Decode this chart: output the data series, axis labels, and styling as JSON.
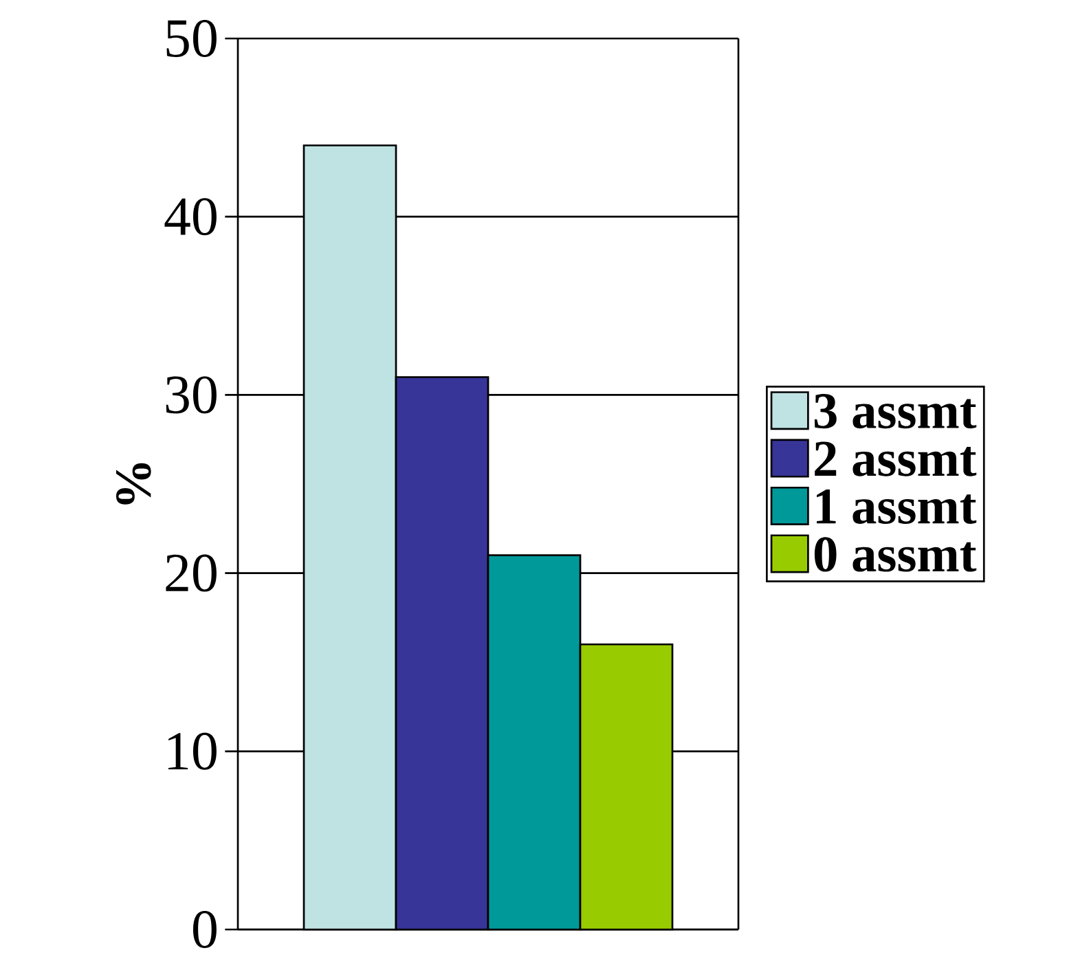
{
  "chart_data": {
    "type": "bar",
    "ylabel": "%",
    "categories": [
      null
    ],
    "series": [
      {
        "name": "3 assmt",
        "color": "#bfe3e3",
        "values": [
          44
        ]
      },
      {
        "name": "2 assmt",
        "color": "#373598",
        "values": [
          31
        ]
      },
      {
        "name": "1 assmt",
        "color": "#00999a",
        "values": [
          21
        ]
      },
      {
        "name": "0 assmt",
        "color": "#99cc00",
        "values": [
          16
        ]
      }
    ],
    "ylim": [
      0,
      50
    ],
    "yticks": [
      0,
      10,
      20,
      30,
      40,
      50
    ],
    "grid": "y",
    "legend": "right"
  }
}
